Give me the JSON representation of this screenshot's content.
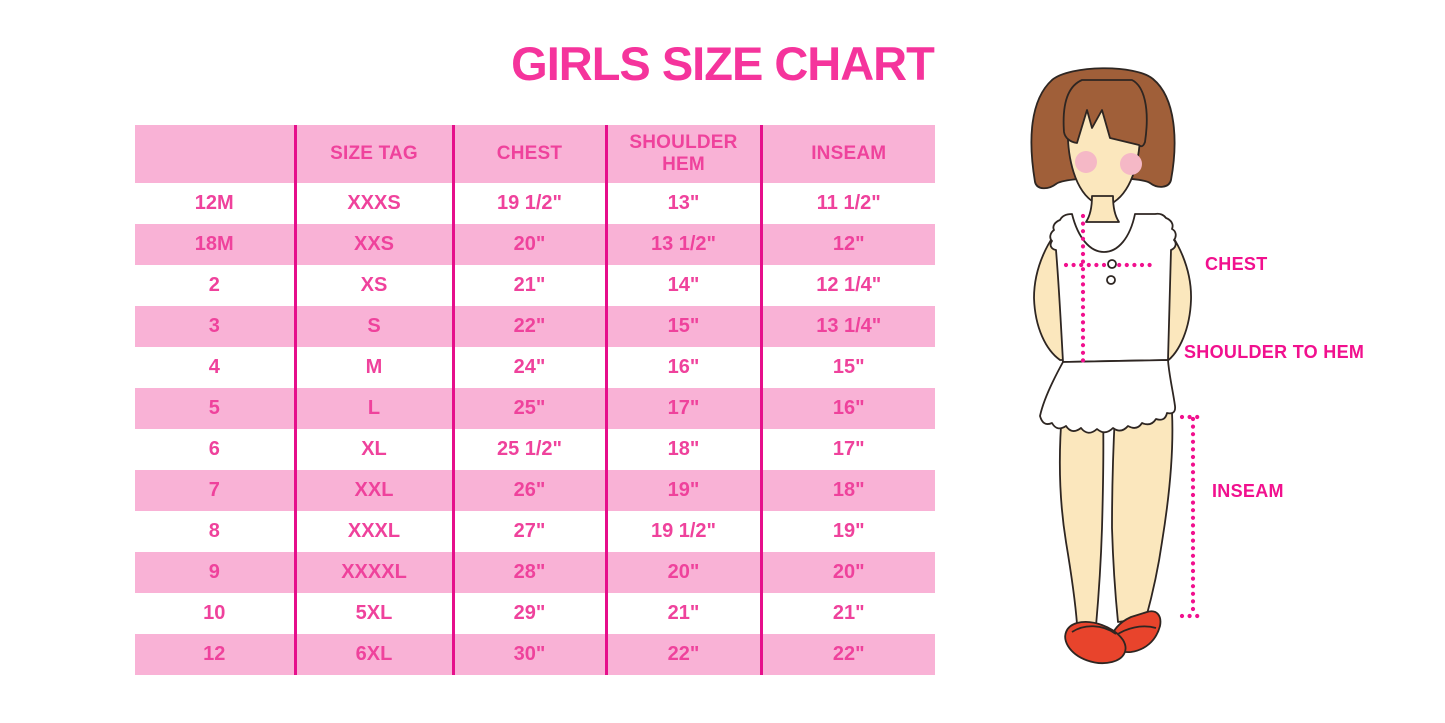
{
  "title": "GIRLS SIZE CHART",
  "colors": {
    "title_pink": "#f5349c",
    "row_pink_bg": "#f9b2d6",
    "row_white_bg": "#ffffff",
    "column_divider": "#e60f8b",
    "table_text_pink": "#ef429c",
    "measure_magenta": "#f1108e",
    "hair_brown": "#a05f39",
    "skin_tone": "#fbe7bd",
    "shoe_red": "#e8442c",
    "blush_pink": "#f5b8c6"
  },
  "chart_data": {
    "type": "table",
    "title": "GIRLS SIZE CHART",
    "headers": [
      "",
      "SIZE TAG",
      "CHEST",
      "SHOULDER HEM",
      "INSEAM"
    ],
    "rows": [
      [
        "12M",
        "XXXS",
        "19 1/2\"",
        "13\"",
        "11 1/2\""
      ],
      [
        "18M",
        "XXS",
        "20\"",
        "13 1/2\"",
        "12\""
      ],
      [
        "2",
        "XS",
        "21\"",
        "14\"",
        "12 1/4\""
      ],
      [
        "3",
        "S",
        "22\"",
        "15\"",
        "13 1/4\""
      ],
      [
        "4",
        "M",
        "24\"",
        "16\"",
        "15\""
      ],
      [
        "5",
        "L",
        "25\"",
        "17\"",
        "16\""
      ],
      [
        "6",
        "XL",
        "25 1/2\"",
        "18\"",
        "17\""
      ],
      [
        "7",
        "XXL",
        "26\"",
        "19\"",
        "18\""
      ],
      [
        "8",
        "XXXL",
        "27\"",
        "19 1/2\"",
        "19\""
      ],
      [
        "9",
        "XXXXL",
        "28\"",
        "20\"",
        "20\""
      ],
      [
        "10",
        "5XL",
        "29\"",
        "21\"",
        "21\""
      ],
      [
        "12",
        "6XL",
        "30\"",
        "22\"",
        "22\""
      ]
    ],
    "layout": {
      "row_striping": "alternating white and pink",
      "gridlines": "vertical magenta dividers only"
    }
  },
  "diagram": {
    "labels": {
      "chest": "CHEST",
      "shoulder_to_hem": "SHOULDER TO HEM",
      "inseam": "INSEAM"
    }
  }
}
